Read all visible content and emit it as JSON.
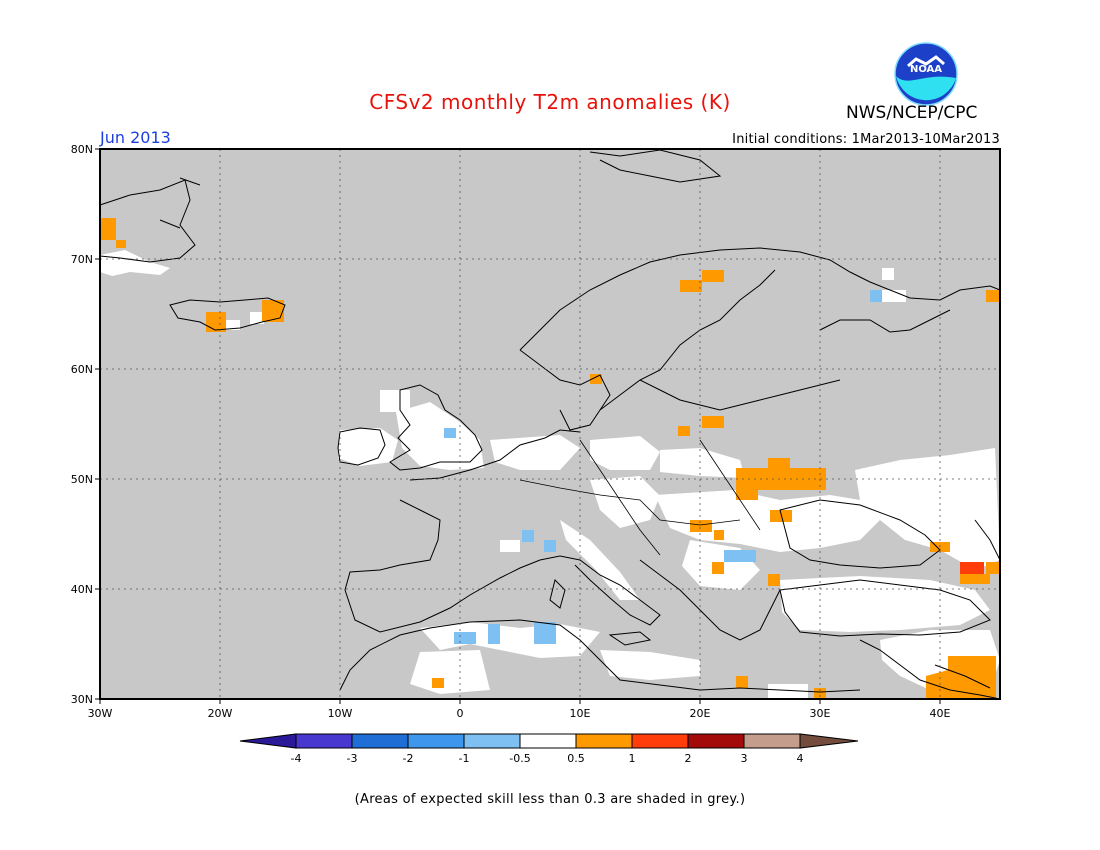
{
  "header": {
    "title": "CFSv2 monthly T2m anomalies (K)",
    "period": "Jun 2013",
    "agency": "NWS/NCEP/CPC",
    "initial_conditions": "Initial conditions: 1Mar2013-10Mar2013",
    "logo_text": "NOAA"
  },
  "map": {
    "lat_labels": [
      "80N",
      "70N",
      "60N",
      "50N",
      "40N",
      "30N"
    ],
    "lon_labels": [
      "30W",
      "20W",
      "10W",
      "0",
      "10E",
      "20E",
      "30E",
      "40E"
    ],
    "background": "#c8c8c8",
    "land_white": "#ffffff"
  },
  "colorbar": {
    "labels": [
      "-4",
      "-3",
      "-2",
      "-1",
      "-0.5",
      "0.5",
      "1",
      "2",
      "3",
      "4"
    ],
    "colors": [
      "#2a1999",
      "#4838d0",
      "#1f6ed6",
      "#3e97ec",
      "#7ec0f2",
      "#ffffff",
      "#ff9900",
      "#ff3d0a",
      "#a30b0b",
      "#c49d8c",
      "#734c3e"
    ]
  },
  "footnote": "(Areas of expected skill less than 0.3 are shaded in grey.)"
}
